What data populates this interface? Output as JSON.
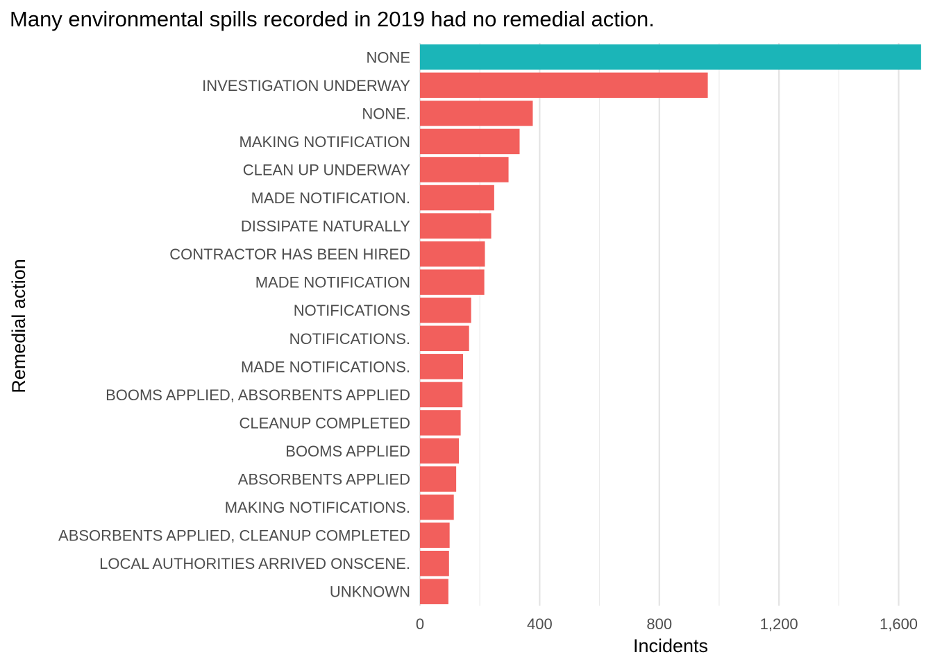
{
  "chart_data": {
    "type": "bar",
    "orientation": "horizontal",
    "title": "Many environmental spills recorded in 2019 had no remedial action.",
    "xlabel": "Incidents",
    "ylabel": "Remedial action",
    "xlim": [
      0,
      1680
    ],
    "x_ticks": [
      0,
      400,
      800,
      1200,
      1600
    ],
    "x_tick_labels": [
      "0",
      "400",
      "800",
      "1,200",
      "1,600"
    ],
    "grid": true,
    "legend": "none",
    "highlight_color": "#1BB5B8",
    "default_color": "#F25F5C",
    "categories": [
      "NONE",
      "INVESTIGATION UNDERWAY",
      "NONE.",
      "MAKING NOTIFICATION",
      "CLEAN UP UNDERWAY",
      "MADE NOTIFICATION.",
      "DISSIPATE NATURALLY",
      "CONTRACTOR HAS BEEN HIRED",
      "MADE NOTIFICATION",
      "NOTIFICATIONS",
      "NOTIFICATIONS.",
      "MADE NOTIFICATIONS.",
      "BOOMS APPLIED, ABSORBENTS APPLIED",
      "CLEANUP COMPLETED",
      "BOOMS APPLIED",
      "ABSORBENTS APPLIED",
      "MAKING NOTIFICATIONS.",
      "ABSORBENTS APPLIED, CLEANUP COMPLETED",
      "LOCAL AUTHORITIES ARRIVED ONSCENE.",
      "UNKNOWN"
    ],
    "values": [
      1675,
      962,
      377,
      333,
      296,
      248,
      238,
      217,
      215,
      171,
      164,
      144,
      142,
      136,
      130,
      121,
      113,
      99,
      97,
      95
    ],
    "highlighted": [
      true,
      false,
      false,
      false,
      false,
      false,
      false,
      false,
      false,
      false,
      false,
      false,
      false,
      false,
      false,
      false,
      false,
      false,
      false,
      false
    ]
  }
}
